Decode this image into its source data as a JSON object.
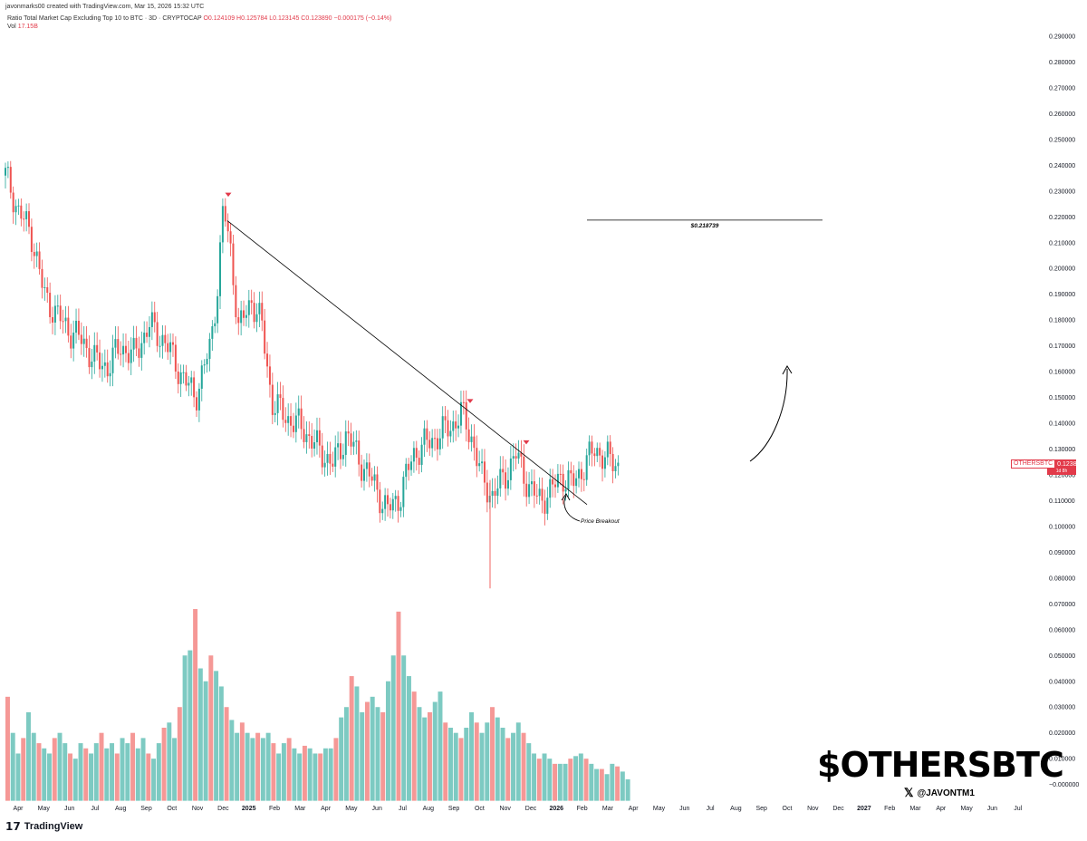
{
  "header": {
    "created_line": "javonmarks00 created with TradingView.com, Mar 15, 2026 15:32 UTC",
    "symbol_line": "Ratio Total Market Cap Excluding Top 10 to BTC · 3D · CRYPTOCAP",
    "ohlc": "O0.124109  H0.125784  L0.123145  C0.123890  −0.000175 (−0.14%)",
    "vol_label": "Vol",
    "vol_value": "17.15B"
  },
  "price_tag": {
    "symbol": "OTHERSBTC",
    "value": "0.123890",
    "time": "1d 8h"
  },
  "branding": {
    "ticker": "$OTHERSBTC",
    "x_icon": "𝕏",
    "handle": "@JAVONTM1",
    "tv_logo_text": "TradingView",
    "tv_mark": "𝟭𝟳"
  },
  "colors": {
    "up": "#26a69a",
    "down": "#ef5350",
    "marker": "#e23a4a",
    "line": "#000000"
  },
  "chart_data": {
    "type": "candlestick",
    "title": "Ratio Total Market Cap Excluding Top 10 to BTC · 3D · CRYPTOCAP",
    "y_ticks": [
      "0.290000",
      "0.280000",
      "0.270000",
      "0.260000",
      "0.250000",
      "0.240000",
      "0.230000",
      "0.220000",
      "0.210000",
      "0.200000",
      "0.190000",
      "0.180000",
      "0.170000",
      "0.160000",
      "0.150000",
      "0.140000",
      "0.130000",
      "0.120000",
      "0.110000",
      "0.100000",
      "0.090000",
      "0.080000",
      "0.070000",
      "0.060000",
      "0.050000",
      "0.040000",
      "0.030000",
      "0.020000",
      "0.010000",
      "−0.000000"
    ],
    "ylim": [
      0,
      0.29
    ],
    "x_ticks": [
      "Apr",
      "May",
      "Jun",
      "Jul",
      "Aug",
      "Sep",
      "Oct",
      "Nov",
      "Dec",
      "2025",
      "Feb",
      "Mar",
      "Apr",
      "May",
      "Jun",
      "Jul",
      "Aug",
      "Sep",
      "Oct",
      "Nov",
      "Dec",
      "2026",
      "Feb",
      "Mar",
      "Apr",
      "May",
      "Jun",
      "Jul",
      "Aug",
      "Sep",
      "Oct",
      "Nov",
      "Dec",
      "2027",
      "Feb",
      "Mar",
      "Apr",
      "May",
      "Jun",
      "Jul"
    ],
    "bold_ticks": [
      "2025",
      "2026",
      "2027"
    ],
    "price_path": [
      {
        "t": 0.0,
        "v": 0.236
      },
      {
        "t": 0.25,
        "v": 0.23
      },
      {
        "t": 0.5,
        "v": 0.222
      },
      {
        "t": 1.0,
        "v": 0.214
      },
      {
        "t": 1.5,
        "v": 0.19
      },
      {
        "t": 2.0,
        "v": 0.182
      },
      {
        "t": 2.5,
        "v": 0.176
      },
      {
        "t": 3.0,
        "v": 0.172
      },
      {
        "t": 3.5,
        "v": 0.164
      },
      {
        "t": 4.0,
        "v": 0.162
      },
      {
        "t": 4.5,
        "v": 0.17
      },
      {
        "t": 5.0,
        "v": 0.166
      },
      {
        "t": 5.6,
        "v": 0.178
      },
      {
        "t": 6.2,
        "v": 0.172
      },
      {
        "t": 6.8,
        "v": 0.16
      },
      {
        "t": 7.4,
        "v": 0.15
      },
      {
        "t": 8.0,
        "v": 0.17
      },
      {
        "t": 8.3,
        "v": 0.196
      },
      {
        "t": 8.5,
        "v": 0.224
      },
      {
        "t": 8.8,
        "v": 0.206
      },
      {
        "t": 9.1,
        "v": 0.176
      },
      {
        "t": 9.6,
        "v": 0.188
      },
      {
        "t": 10.0,
        "v": 0.178
      },
      {
        "t": 10.4,
        "v": 0.148
      },
      {
        "t": 11.0,
        "v": 0.142
      },
      {
        "t": 11.6,
        "v": 0.138
      },
      {
        "t": 12.2,
        "v": 0.13
      },
      {
        "t": 12.8,
        "v": 0.124
      },
      {
        "t": 13.3,
        "v": 0.136
      },
      {
        "t": 13.8,
        "v": 0.126
      },
      {
        "t": 14.4,
        "v": 0.116
      },
      {
        "t": 14.9,
        "v": 0.106
      },
      {
        "t": 15.4,
        "v": 0.112
      },
      {
        "t": 15.9,
        "v": 0.128
      },
      {
        "t": 16.4,
        "v": 0.132
      },
      {
        "t": 17.0,
        "v": 0.136
      },
      {
        "t": 17.5,
        "v": 0.14
      },
      {
        "t": 17.8,
        "v": 0.144
      },
      {
        "t": 18.2,
        "v": 0.134
      },
      {
        "t": 18.6,
        "v": 0.118
      },
      {
        "t": 19.0,
        "v": 0.112
      },
      {
        "t": 19.4,
        "v": 0.118
      },
      {
        "t": 19.9,
        "v": 0.128
      },
      {
        "t": 20.4,
        "v": 0.116
      },
      {
        "t": 20.8,
        "v": 0.11
      },
      {
        "t": 21.3,
        "v": 0.114
      },
      {
        "t": 21.7,
        "v": 0.12
      },
      {
        "t": 22.1,
        "v": 0.116
      },
      {
        "t": 22.6,
        "v": 0.124
      },
      {
        "t": 23.0,
        "v": 0.13
      },
      {
        "t": 23.5,
        "v": 0.126
      },
      {
        "t": 23.9,
        "v": 0.124
      }
    ],
    "volume_levels": [
      0.034,
      0.02,
      0.012,
      0.018,
      0.028,
      0.02,
      0.016,
      0.014,
      0.012,
      0.018,
      0.02,
      0.016,
      0.012,
      0.01,
      0.016,
      0.014,
      0.012,
      0.016,
      0.02,
      0.014,
      0.016,
      0.012,
      0.018,
      0.016,
      0.02,
      0.014,
      0.018,
      0.012,
      0.01,
      0.016,
      0.022,
      0.024,
      0.018,
      0.03,
      0.05,
      0.052,
      0.068,
      0.045,
      0.04,
      0.05,
      0.044,
      0.038,
      0.03,
      0.025,
      0.02,
      0.024,
      0.02,
      0.018,
      0.02,
      0.018,
      0.02,
      0.016,
      0.012,
      0.016,
      0.018,
      0.014,
      0.012,
      0.015,
      0.014,
      0.012,
      0.012,
      0.014,
      0.014,
      0.018,
      0.026,
      0.03,
      0.042,
      0.038,
      0.028,
      0.032,
      0.034,
      0.03,
      0.028,
      0.04,
      0.05,
      0.067,
      0.05,
      0.042,
      0.036,
      0.03,
      0.026,
      0.028,
      0.032,
      0.036,
      0.024,
      0.022,
      0.02,
      0.018,
      0.022,
      0.028,
      0.024,
      0.02,
      0.024,
      0.03,
      0.026,
      0.022,
      0.018,
      0.02,
      0.024,
      0.02,
      0.016,
      0.012,
      0.01,
      0.012,
      0.01,
      0.008,
      0.008,
      0.008,
      0.01,
      0.011,
      0.012,
      0.01,
      0.008,
      0.006,
      0.006,
      0.004,
      0.008,
      0.007,
      0.005,
      0.002
    ],
    "annotations": {
      "target_label": "$0.218739",
      "target_value": 0.218739,
      "breakout_label": "Price Breakout"
    }
  }
}
